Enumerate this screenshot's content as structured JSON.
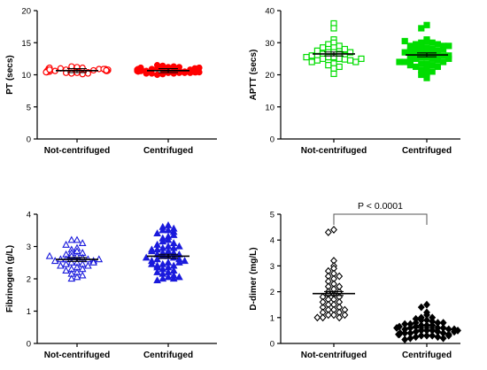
{
  "chart_data": [
    {
      "type": "scatter",
      "panel": "PT",
      "ylabel": "PT (secs)",
      "ylim": [
        0,
        20
      ],
      "yticks": [
        0,
        5,
        10,
        15,
        20
      ],
      "categories": [
        "Not-centrifuged",
        "Centrifuged"
      ],
      "marker": "circle",
      "filled": [
        false,
        true
      ],
      "color": "#ff0000",
      "series": [
        {
          "values": [
            10.6,
            10.9,
            11.1,
            10.8,
            10.4,
            11.0,
            10.7,
            10.3,
            10.6,
            10.9,
            11.2,
            10.5,
            10.2,
            10.8,
            11.0,
            10.6,
            10.4,
            10.7,
            11.3,
            10.5,
            10.9,
            10.1,
            10.6,
            10.8,
            10.3,
            11.1,
            10.7,
            10.5,
            10.6,
            10.4,
            10.9,
            10.8,
            10.2,
            10.7
          ],
          "mean": 10.65
        },
        {
          "values": [
            10.5,
            10.8,
            11.2,
            10.6,
            10.3,
            11.0,
            10.7,
            10.1,
            10.9,
            10.5,
            11.4,
            10.6,
            10.2,
            10.8,
            11.1,
            10.4,
            10.6,
            10.0,
            10.9,
            10.7,
            11.3,
            10.5,
            10.3,
            10.8,
            11.0,
            10.6,
            10.2,
            10.7,
            10.9,
            10.4,
            11.5,
            10.6,
            10.3,
            10.8,
            10.5,
            11.1,
            10.7,
            10.4,
            10.9,
            10.2,
            11.0,
            10.6,
            10.5,
            10.8,
            10.3,
            10.7,
            11.2,
            10.6,
            10.4,
            10.9
          ],
          "mean": 10.65
        }
      ]
    },
    {
      "type": "scatter",
      "panel": "APTT",
      "ylabel": "APTT (secs)",
      "ylim": [
        0,
        40
      ],
      "yticks": [
        0,
        10,
        20,
        30,
        40
      ],
      "categories": [
        "Not-centrifuged",
        "Centrifuged"
      ],
      "marker": "square",
      "filled": [
        false,
        true
      ],
      "color": "#00dd00",
      "series": [
        {
          "values": [
            36,
            34.5,
            20.3,
            31,
            30,
            29.5,
            28.5,
            28,
            27.5,
            27,
            27,
            26.5,
            26.5,
            26,
            26,
            25.5,
            25.5,
            25,
            25,
            24.8,
            24.5,
            24.5,
            24,
            24,
            23.5,
            23,
            22.5,
            22,
            29,
            28.5,
            28,
            27.5,
            27,
            26,
            25.5,
            25
          ],
          "mean": 26.5
        },
        {
          "values": [
            35.5,
            34.5,
            30.5,
            30,
            30,
            29.5,
            29.5,
            29,
            29,
            28.5,
            28.5,
            28,
            28,
            27.5,
            27.5,
            27,
            27,
            26.5,
            26.5,
            26,
            26,
            26,
            25.5,
            25.5,
            25,
            25,
            24.5,
            24.5,
            24,
            24,
            23.5,
            23.5,
            23,
            22.5,
            22.5,
            22,
            21.5,
            21,
            20.5,
            20,
            19,
            31,
            30.5,
            29,
            28,
            27,
            26,
            25,
            24,
            23
          ],
          "mean": 26.2
        }
      ]
    },
    {
      "type": "scatter",
      "panel": "Fibrinogen",
      "ylabel": "Fibrinogen (g/L)",
      "ylim": [
        0,
        4
      ],
      "yticks": [
        0,
        1,
        2,
        3,
        4
      ],
      "categories": [
        "Not-centrifuged",
        "Centrifuged"
      ],
      "marker": "triangle",
      "filled": [
        false,
        true
      ],
      "color": "#1a1adc",
      "series": [
        {
          "values": [
            3.2,
            3.2,
            3.1,
            3.05,
            2.95,
            2.9,
            2.85,
            2.8,
            2.8,
            2.75,
            2.7,
            2.7,
            2.65,
            2.6,
            2.6,
            2.6,
            2.55,
            2.55,
            2.5,
            2.5,
            2.45,
            2.45,
            2.4,
            2.4,
            2.35,
            2.3,
            2.3,
            2.25,
            2.2,
            2.15,
            2.1,
            2.05,
            2.0,
            2.6,
            2.5,
            2.7
          ],
          "mean": 2.6
        },
        {
          "values": [
            3.65,
            3.6,
            3.55,
            3.5,
            3.5,
            3.45,
            3.4,
            3.3,
            3.25,
            3.2,
            3.15,
            3.1,
            3.05,
            3.0,
            2.95,
            2.95,
            2.9,
            2.85,
            2.8,
            2.8,
            2.75,
            2.7,
            2.7,
            2.65,
            2.6,
            2.6,
            2.55,
            2.55,
            2.5,
            2.45,
            2.4,
            2.4,
            2.35,
            2.3,
            2.25,
            2.2,
            2.15,
            2.1,
            2.05,
            2.0,
            2.0,
            1.95,
            3.35,
            3.0,
            2.9,
            2.75,
            2.65,
            2.5,
            2.35,
            2.2,
            2.05,
            2.85,
            2.45
          ],
          "mean": 2.7
        }
      ]
    },
    {
      "type": "scatter",
      "panel": "D-dimer",
      "ylabel": "D-dimer (mg/L)",
      "ylim": [
        0,
        5
      ],
      "yticks": [
        0,
        1,
        2,
        3,
        4,
        5
      ],
      "categories": [
        "Not-centrifuged",
        "Centrifuged"
      ],
      "marker": "diamond",
      "filled": [
        false,
        true
      ],
      "color": "#000000",
      "annotation": "P < 0.0001",
      "series": [
        {
          "values": [
            4.4,
            4.3,
            3.2,
            3.0,
            2.9,
            2.8,
            2.7,
            2.6,
            2.5,
            2.4,
            2.3,
            2.2,
            2.1,
            2.0,
            2.0,
            1.9,
            1.9,
            1.8,
            1.8,
            1.7,
            1.7,
            1.6,
            1.5,
            1.5,
            1.4,
            1.4,
            1.3,
            1.3,
            1.2,
            1.2,
            1.1,
            1.1,
            1.0,
            1.0,
            2.6,
            2.2,
            1.6,
            1.3,
            1.1,
            1.0
          ],
          "mean": 1.93
        },
        {
          "values": [
            1.5,
            1.4,
            1.2,
            1.1,
            1.0,
            1.0,
            0.95,
            0.9,
            0.9,
            0.85,
            0.8,
            0.8,
            0.75,
            0.7,
            0.7,
            0.7,
            0.65,
            0.6,
            0.6,
            0.6,
            0.55,
            0.55,
            0.5,
            0.5,
            0.5,
            0.45,
            0.45,
            0.4,
            0.4,
            0.4,
            0.35,
            0.35,
            0.3,
            0.3,
            0.3,
            0.25,
            0.25,
            0.2,
            0.2,
            0.15,
            0.8,
            0.65,
            0.55,
            0.45,
            0.35,
            0.75,
            0.6,
            0.5,
            0.4,
            0.3
          ],
          "mean": 0.6
        }
      ]
    }
  ]
}
